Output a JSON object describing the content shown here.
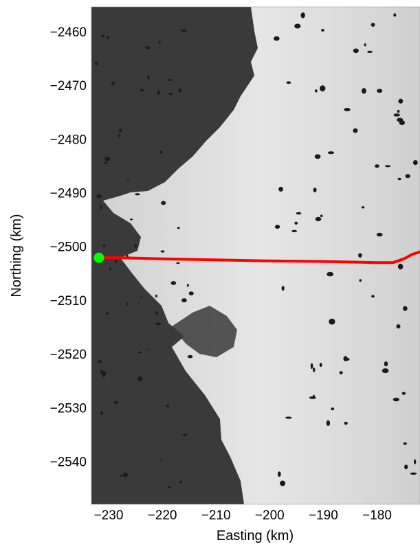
{
  "map": {
    "xlabel": "Easting (km)",
    "ylabel": "Northing (km)",
    "x_ticks": [
      -230,
      -220,
      -210,
      -200,
      -190,
      -180
    ],
    "y_ticks": [
      -2460,
      -2470,
      -2480,
      -2490,
      -2500,
      -2510,
      -2520,
      -2530,
      -2540
    ],
    "xlim": [
      -233.2,
      -172.0
    ],
    "ylim": [
      -2548.0,
      -2455.4
    ],
    "colors": {
      "rock": "#3a3a3a",
      "ice": "#dcdcdc",
      "lake": "#1a1a1a",
      "flowline": "#ff0000",
      "terminus_marker": "#00ff00"
    },
    "flowline": [
      [
        -231.8,
        -2502.1
      ],
      [
        -228,
        -2502.1
      ],
      [
        -220,
        -2502.3
      ],
      [
        -210,
        -2502.5
      ],
      [
        -200,
        -2502.7
      ],
      [
        -190,
        -2502.8
      ],
      [
        -180,
        -2503.0
      ],
      [
        -177,
        -2503.0
      ],
      [
        -175,
        -2502.3
      ],
      [
        -173.5,
        -2501.5
      ],
      [
        -172.0,
        -2501.0
      ]
    ],
    "terminus_marker": [
      -231.8,
      -2502.1
    ]
  }
}
